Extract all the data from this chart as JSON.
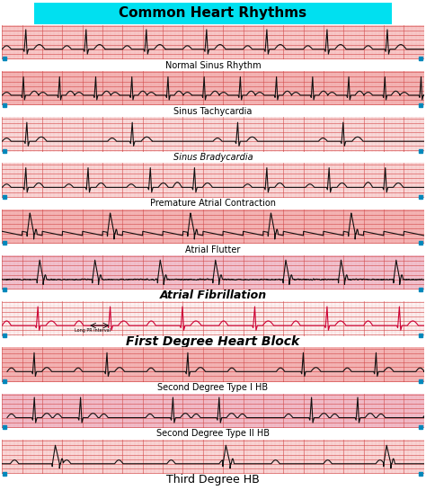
{
  "title": "Common Heart Rhythms",
  "title_bg": "#00e0f0",
  "title_fontsize": 11,
  "background": "#ffffff",
  "strip_labels": [
    "Normal Sinus Rhythm",
    "Sinus Tachycardia",
    "Sinus Bradycardia",
    "Premature Atrial Contraction",
    "Atrial Flutter",
    "Atrial Fibrillation",
    "First Degree Heart Block",
    "Second Degree Type I HB",
    "Second Degree Type II HB",
    "Third Degree HB"
  ],
  "strip_label_italic": [
    false,
    false,
    true,
    false,
    false,
    true,
    true,
    false,
    false,
    false
  ],
  "strip_label_bold": [
    false,
    false,
    false,
    false,
    false,
    true,
    true,
    false,
    false,
    false
  ],
  "strip_label_fontsize": [
    7,
    7,
    7,
    7,
    7,
    9,
    10,
    7,
    7,
    9
  ],
  "strip_bg_colors": [
    "#f9d0d0",
    "#f5b8b8",
    "#fce8e8",
    "#fce0e0",
    "#f5b8b8",
    "#f0c8d8",
    "#ffffff",
    "#f5b8b8",
    "#f0c0d0",
    "#fce0e0"
  ],
  "ecg_colors": [
    "#111111",
    "#111111",
    "#111111",
    "#111111",
    "#111111",
    "#111111",
    "#cc0033",
    "#111111",
    "#111111",
    "#111111"
  ],
  "grid_major_color": "#cc3333",
  "grid_minor_color": "#f0a0a0",
  "marker_color": "#0088bb"
}
